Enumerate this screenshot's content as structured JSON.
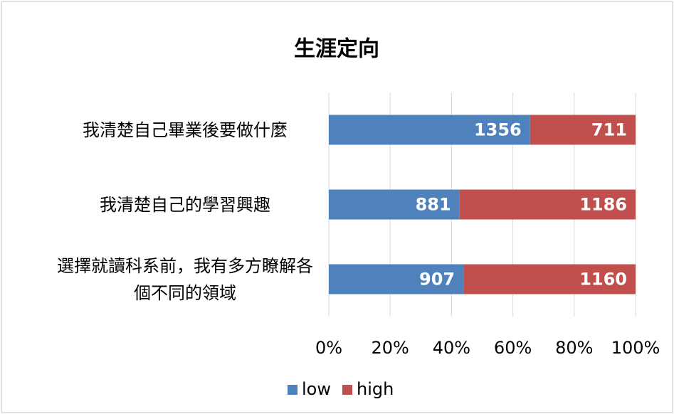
{
  "chart_data": {
    "type": "stacked_percent_bar",
    "title": "生涯定向",
    "categories": [
      "我清楚自己畢業後要做什麼",
      "我清楚自己的學習興趣",
      "選擇就讀科系前，我有多方瞭解各個不同的領域"
    ],
    "series": [
      {
        "name": "low",
        "color": "#4f81bd",
        "values": [
          1356,
          881,
          907
        ]
      },
      {
        "name": "high",
        "color": "#c0504d",
        "values": [
          711,
          1186,
          1160
        ]
      }
    ],
    "xlim": [
      0,
      100
    ],
    "xticks": [
      {
        "value": 0,
        "label": "0%"
      },
      {
        "value": 20,
        "label": "20%"
      },
      {
        "value": 40,
        "label": "40%"
      },
      {
        "value": 60,
        "label": "60%"
      },
      {
        "value": 80,
        "label": "80%"
      },
      {
        "value": 100,
        "label": "100%"
      }
    ],
    "grid": true,
    "legend": "bottom"
  }
}
